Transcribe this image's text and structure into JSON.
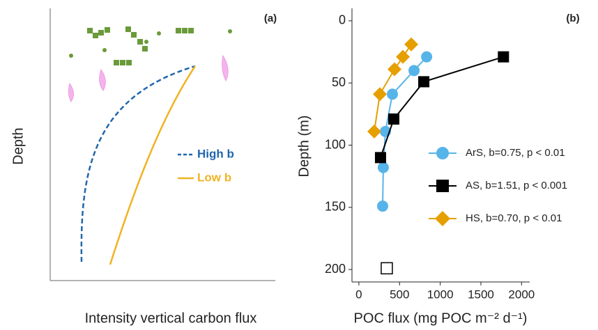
{
  "panel_a": {
    "label": "(a)",
    "y_label": "Depth",
    "x_label": "Intensity vertical carbon flux",
    "legend": [
      {
        "name": "High b",
        "color": "#2166ac"
      },
      {
        "name": "Low b",
        "color": "#f0b323"
      }
    ]
  },
  "chart_data": {
    "type": "scatter",
    "label": "(b)",
    "y_label": "Depth (m)",
    "x_label": "POC flux (mg POC m⁻² d⁻¹)",
    "xlim": [
      -85,
      2100
    ],
    "xticks": [
      0,
      500,
      1000,
      1500,
      2000
    ],
    "ylim": [
      -10,
      210
    ],
    "yticks": [
      0,
      50,
      100,
      150,
      200
    ],
    "y_inverted": true,
    "series": [
      {
        "name": "ArS, b=0.75, p < 0.01",
        "color": "#56b4e9",
        "marker": "circle",
        "x": [
          833,
          678,
          412,
          326,
          300,
          292
        ],
        "y": [
          29,
          40,
          59,
          89,
          118,
          149
        ]
      },
      {
        "name": "AS, b=1.51, p < 0.001",
        "color": "#000000",
        "marker": "square",
        "x": [
          1777,
          798,
          429,
          266
        ],
        "y": [
          29,
          49,
          79,
          110
        ]
      },
      {
        "name": "HS, b=0.70, p < 0.01",
        "color": "#e69f00",
        "marker": "diamond",
        "x": [
          644,
          541,
          438,
          258,
          189
        ],
        "y": [
          19,
          29,
          39,
          59,
          89
        ]
      }
    ],
    "excluded_points": {
      "x": [
        343
      ],
      "y": [
        199
      ]
    }
  }
}
